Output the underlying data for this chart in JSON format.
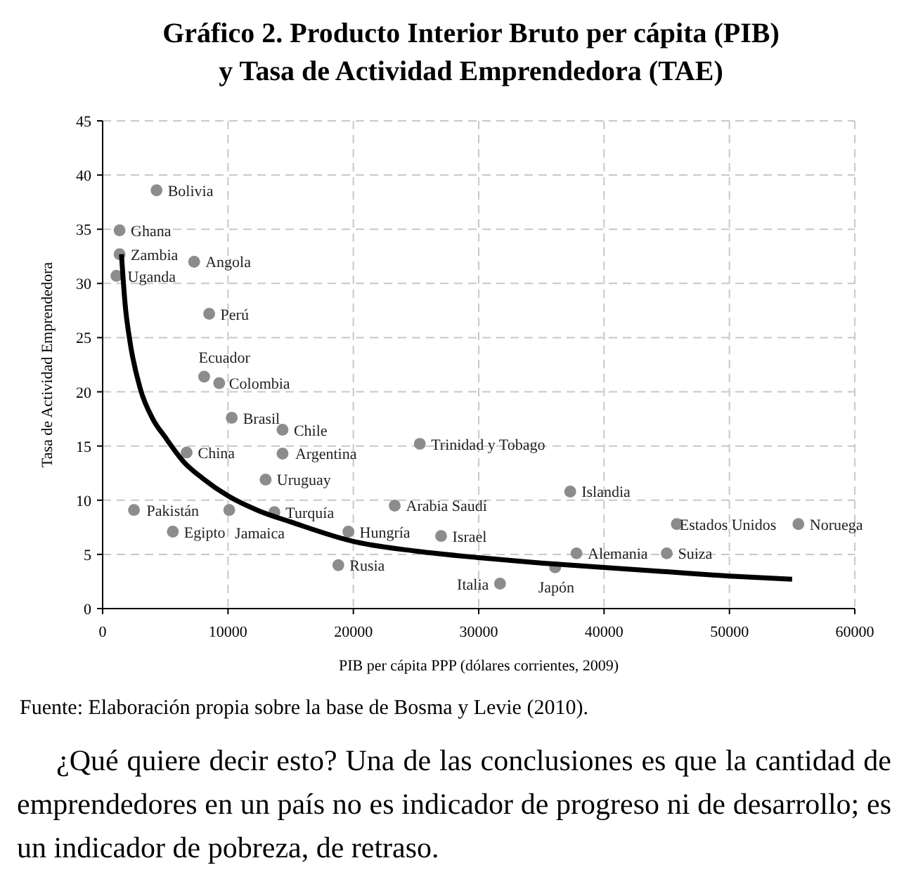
{
  "chart_data": {
    "type": "scatter",
    "title": "Gráfico 2. Producto Interior Bruto per cápita (PIB)\ny Tasa de Actividad Emprendedora (TAE)",
    "xlabel": "PIB per cápita PPP (dólares corrientes, 2009)",
    "ylabel": "Tasa de Actividad Emprendedora",
    "xlim": [
      0,
      60000
    ],
    "xticks": [
      0,
      10000,
      20000,
      30000,
      40000,
      50000,
      60000
    ],
    "ylim": [
      0,
      45
    ],
    "yticks": [
      0,
      5,
      10,
      15,
      20,
      25,
      30,
      35,
      40,
      45
    ],
    "grid": true,
    "legend": false,
    "marker": "circle",
    "series": [
      {
        "name": "Bolivia",
        "color": "#8c8c8c",
        "x": [
          4300
        ],
        "values": [
          38.6
        ]
      },
      {
        "name": "Ghana",
        "color": "#8c8c8c",
        "x": [
          1350
        ],
        "values": [
          34.9
        ]
      },
      {
        "name": "Zambia",
        "color": "#8c8c8c",
        "x": [
          1350
        ],
        "values": [
          32.7
        ]
      },
      {
        "name": "Uganda",
        "color": "#8c8c8c",
        "x": [
          1100
        ],
        "values": [
          30.7
        ]
      },
      {
        "name": "Angola",
        "color": "#8c8c8c",
        "x": [
          7300
        ],
        "values": [
          32.0
        ]
      },
      {
        "name": "Perú",
        "color": "#8c8c8c",
        "x": [
          8500
        ],
        "values": [
          27.2
        ]
      },
      {
        "name": "Ecuador",
        "color": "#8c8c8c",
        "x": [
          8100
        ],
        "values": [
          21.4
        ]
      },
      {
        "name": "Colombia",
        "color": "#8c8c8c",
        "x": [
          9300
        ],
        "values": [
          20.8
        ]
      },
      {
        "name": "Brasil",
        "color": "#8c8c8c",
        "x": [
          10300
        ],
        "values": [
          17.6
        ]
      },
      {
        "name": "Chile",
        "color": "#8c8c8c",
        "x": [
          14350
        ],
        "values": [
          16.5
        ]
      },
      {
        "name": "China",
        "color": "#8c8c8c",
        "x": [
          6700
        ],
        "values": [
          14.4
        ]
      },
      {
        "name": "Argentina",
        "color": "#8c8c8c",
        "x": [
          14350
        ],
        "values": [
          14.3
        ]
      },
      {
        "name": "Uruguay",
        "color": "#8c8c8c",
        "x": [
          13000
        ],
        "values": [
          11.9
        ]
      },
      {
        "name": "Jamaica",
        "color": "#8c8c8c",
        "x": [
          10100
        ],
        "values": [
          9.1
        ]
      },
      {
        "name": "Pakistán",
        "color": "#8c8c8c",
        "x": [
          2500
        ],
        "values": [
          9.1
        ]
      },
      {
        "name": "Egipto",
        "color": "#8c8c8c",
        "x": [
          5600
        ],
        "values": [
          7.1
        ]
      },
      {
        "name": "Turquía",
        "color": "#8c8c8c",
        "x": [
          13700
        ],
        "values": [
          8.9
        ]
      },
      {
        "name": "Hungría",
        "color": "#8c8c8c",
        "x": [
          19600
        ],
        "values": [
          7.1
        ]
      },
      {
        "name": "Rusia",
        "color": "#8c8c8c",
        "x": [
          18800
        ],
        "values": [
          4.0
        ]
      },
      {
        "name": "Arabia Saudí",
        "color": "#8c8c8c",
        "x": [
          23300
        ],
        "values": [
          9.5
        ]
      },
      {
        "name": "Trinidad y Tobago",
        "color": "#8c8c8c",
        "x": [
          25300
        ],
        "values": [
          15.2
        ]
      },
      {
        "name": "Israel",
        "color": "#8c8c8c",
        "x": [
          27000
        ],
        "values": [
          6.7
        ]
      },
      {
        "name": "Italia",
        "color": "#8c8c8c",
        "x": [
          31700
        ],
        "values": [
          2.3
        ]
      },
      {
        "name": "Japón",
        "color": "#8c8c8c",
        "x": [
          36100
        ],
        "values": [
          3.8
        ]
      },
      {
        "name": "Alemania",
        "color": "#8c8c8c",
        "x": [
          37800
        ],
        "values": [
          5.1
        ]
      },
      {
        "name": "Islandia",
        "color": "#8c8c8c",
        "x": [
          37300
        ],
        "values": [
          10.8
        ]
      },
      {
        "name": "Estados Unidos",
        "color": "#8c8c8c",
        "x": [
          45800
        ],
        "values": [
          7.8
        ]
      },
      {
        "name": "Suiza",
        "color": "#8c8c8c",
        "x": [
          45000
        ],
        "values": [
          5.1
        ]
      },
      {
        "name": "Noruega",
        "color": "#8c8c8c",
        "x": [
          55500
        ],
        "values": [
          7.8
        ]
      },
      {
        "type": "line",
        "color": "#000000",
        "marker": "none",
        "line_style": "solid",
        "x": [
          1500,
          1800,
          2200,
          3000,
          4000,
          5000,
          6500,
          8000,
          10000,
          12500,
          15000,
          20000,
          25000,
          30000,
          35000,
          40000,
          45000,
          50000,
          55000
        ],
        "values": [
          32.7,
          28,
          24.5,
          20.3,
          17.5,
          15.8,
          13.5,
          12,
          10.4,
          9,
          8,
          6.2,
          5.3,
          4.7,
          4.2,
          3.8,
          3.4,
          3.0,
          2.7
        ]
      }
    ],
    "annotations": [
      "Fuente: Elaboración propia sobre la base de Bosma y Levie (2010).",
      "¿Qué quiere decir esto? Una de las conclusiones es que la cantidad de emprendedores en un país no es indicador de progreso ni de desarrollo; es un indicador de pobreza, de retraso."
    ]
  }
}
